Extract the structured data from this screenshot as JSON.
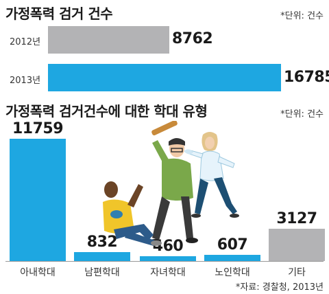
{
  "chart_data": [
    {
      "type": "bar",
      "orientation": "horizontal",
      "title": "가정폭력 검거 건수",
      "unit_note": "*단위: 건수",
      "categories": [
        "2012년",
        "2013년"
      ],
      "values": [
        8762,
        16785
      ],
      "value_labels": [
        "8762",
        "16785"
      ],
      "colors": [
        "#b3b3b5",
        "#1ea7e1"
      ],
      "xlim": [
        0,
        16785
      ]
    },
    {
      "type": "bar",
      "orientation": "vertical",
      "title": "가정폭력 검거건수에 대한 학대 유형",
      "unit_note": "*단위: 건수",
      "categories": [
        "아내학대",
        "남편학대",
        "자녀학대",
        "노인학대",
        "기타"
      ],
      "values": [
        11759,
        832,
        460,
        607,
        3127
      ],
      "value_labels": [
        "11759",
        "832",
        "460",
        "607",
        "3127"
      ],
      "colors": [
        "#1ea7e1",
        "#1ea7e1",
        "#1ea7e1",
        "#1ea7e1",
        "#b3b3b5"
      ],
      "ylim": [
        0,
        11759
      ]
    }
  ],
  "source": "*자료: 경찰청, 2013년"
}
